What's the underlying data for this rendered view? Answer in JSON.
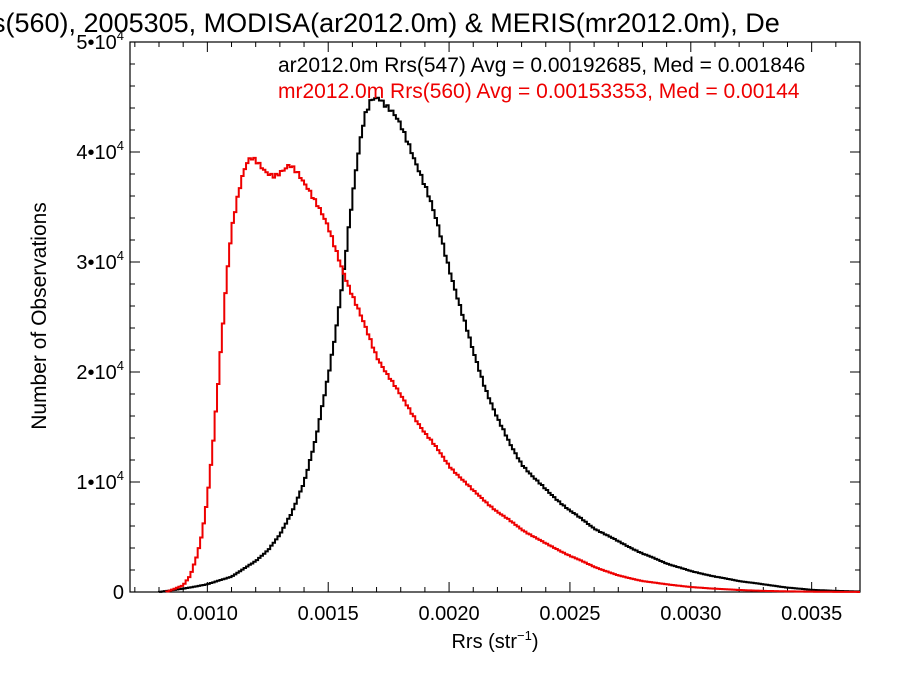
{
  "chart_data": {
    "type": "line",
    "title": "s(560), 2005305, MODISA(ar2012.0m) & MERIS(mr2012.0m), De",
    "xlabel_main": "Rrs (str",
    "xlabel_sup": "−1",
    "xlabel_close": ")",
    "ylabel": "Number of Observations",
    "xlim": [
      0.00068,
      0.0037
    ],
    "ylim": [
      0,
      50000
    ],
    "x_ticks": [
      {
        "value": 0.001,
        "label": "0.0010"
      },
      {
        "value": 0.0015,
        "label": "0.0015"
      },
      {
        "value": 0.002,
        "label": "0.0020"
      },
      {
        "value": 0.0025,
        "label": "0.0025"
      },
      {
        "value": 0.003,
        "label": "0.0030"
      },
      {
        "value": 0.0035,
        "label": "0.0035"
      }
    ],
    "y_ticks": [
      {
        "value": 0,
        "label": "0",
        "sup": ""
      },
      {
        "value": 10000,
        "label": "1•10",
        "sup": "4"
      },
      {
        "value": 20000,
        "label": "2•10",
        "sup": "4"
      },
      {
        "value": 30000,
        "label": "3•10",
        "sup": "4"
      },
      {
        "value": 40000,
        "label": "4•10",
        "sup": "4"
      },
      {
        "value": 50000,
        "label": "5•10",
        "sup": "4"
      }
    ],
    "legend_position": "top-right",
    "series": [
      {
        "name": "ar2012.0m Rrs(547) Avg = 0.00192685, Med = 0.001846",
        "color": "#000000",
        "x": [
          0.0008,
          0.0009,
          0.001,
          0.0011,
          0.0012,
          0.00125,
          0.0013,
          0.00135,
          0.0014,
          0.00145,
          0.0015,
          0.00153,
          0.00156,
          0.00159,
          0.00162,
          0.00165,
          0.00168,
          0.00171,
          0.00174,
          0.00177,
          0.0018,
          0.00184,
          0.00188,
          0.00192,
          0.00196,
          0.002,
          0.00205,
          0.0021,
          0.00215,
          0.0022,
          0.00225,
          0.0023,
          0.00235,
          0.0024,
          0.0025,
          0.0026,
          0.0027,
          0.0028,
          0.0029,
          0.003,
          0.0031,
          0.0032,
          0.0033,
          0.0034,
          0.0035,
          0.0036,
          0.0037
        ],
        "y": [
          0,
          300,
          700,
          1400,
          2800,
          3800,
          5200,
          7200,
          10000,
          14000,
          19500,
          23500,
          28500,
          34000,
          39000,
          43000,
          45000,
          45200,
          44200,
          43300,
          42300,
          40500,
          38200,
          35600,
          32800,
          29600,
          25600,
          21800,
          18600,
          15800,
          13500,
          11700,
          10400,
          9300,
          7400,
          5800,
          4600,
          3500,
          2600,
          1900,
          1400,
          1000,
          700,
          400,
          200,
          100,
          50
        ]
      },
      {
        "name": "mr2012.0m Rrs(560) Avg = 0.00153353, Med = 0.00144",
        "color": "#ee0000",
        "x": [
          0.00083,
          0.0009,
          0.00093,
          0.00096,
          0.00098,
          0.001,
          0.00102,
          0.00104,
          0.00106,
          0.00108,
          0.0011,
          0.00112,
          0.00114,
          0.00116,
          0.00118,
          0.0012,
          0.00124,
          0.00128,
          0.00132,
          0.00134,
          0.00138,
          0.00142,
          0.00146,
          0.0015,
          0.00155,
          0.0016,
          0.00165,
          0.0017,
          0.0018,
          0.0019,
          0.002,
          0.0021,
          0.0022,
          0.0023,
          0.0024,
          0.0025,
          0.0026,
          0.0027,
          0.0028,
          0.0029,
          0.003,
          0.0031,
          0.0032,
          0.0033,
          0.0034,
          0.0035,
          0.0036,
          0.0037
        ],
        "y": [
          0,
          600,
          1500,
          3500,
          5500,
          8500,
          12500,
          17500,
          23000,
          28500,
          33000,
          35500,
          37500,
          38800,
          39300,
          39000,
          38300,
          38000,
          38300,
          38600,
          37900,
          36800,
          35000,
          33000,
          30000,
          27000,
          24200,
          21500,
          17800,
          14500,
          11500,
          9200,
          7300,
          5700,
          4400,
          3300,
          2300,
          1500,
          1000,
          700,
          450,
          300,
          180,
          100,
          60,
          30,
          15,
          5
        ]
      }
    ]
  }
}
